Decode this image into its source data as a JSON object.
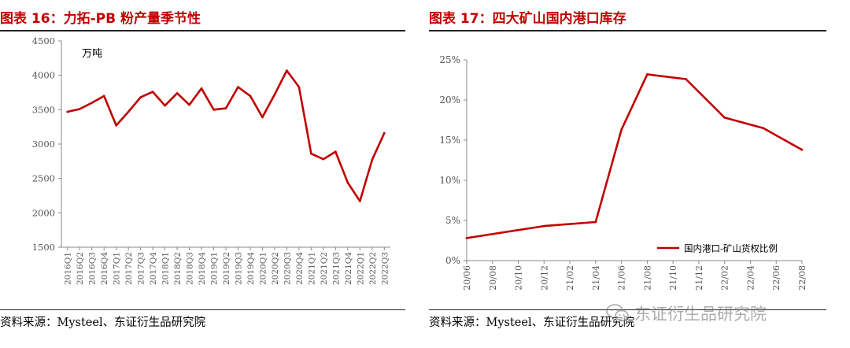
{
  "charts": [
    {
      "title": "图表 16：力拓-PB 粉产量季节性",
      "source": "资料来源：Mysteel、东证衍生品研究院"
    },
    {
      "title": "图表 17：四大矿山国内港口库存",
      "source": "资料来源：Mysteel、东证衍生品研究院"
    }
  ],
  "watermark": {
    "text": "东证衍生品研究院",
    "icon": "wechat-icon"
  },
  "chart_data": [
    {
      "type": "line",
      "title": "图表 16：力拓-PB 粉产量季节性",
      "unit_label": "万吨",
      "color": "#c00000",
      "ylim": [
        1500,
        4500
      ],
      "yticks": [
        1500,
        2000,
        2500,
        3000,
        3500,
        4000,
        4500
      ],
      "ytick_labels": [
        "1500",
        "2000",
        "2500",
        "3000",
        "3500",
        "4000",
        "4500"
      ],
      "categories": [
        "2016Q1",
        "2016Q2",
        "2016Q3",
        "2016Q4",
        "2017Q1",
        "2017Q2",
        "2017Q3",
        "2017Q4",
        "2018Q1",
        "2018Q2",
        "2018Q3",
        "2018Q4",
        "2019Q1",
        "2019Q2",
        "2019Q3",
        "2019Q4",
        "2020Q1",
        "2020Q2",
        "2020Q3",
        "2020Q4",
        "2021Q1",
        "2021Q2",
        "2021Q3",
        "2021Q4",
        "2022Q1",
        "2022Q2",
        "2022Q3"
      ],
      "values": [
        3470,
        3510,
        3600,
        3700,
        3270,
        3470,
        3680,
        3760,
        3560,
        3740,
        3570,
        3810,
        3500,
        3520,
        3830,
        3700,
        3390,
        3720,
        4070,
        3830,
        2860,
        2780,
        2890,
        2440,
        2170,
        2770,
        3160
      ],
      "grid": false,
      "legend": "none"
    },
    {
      "type": "line",
      "title": "图表 17：四大矿山国内港口库存",
      "color": "#c00000",
      "ylim": [
        0,
        25
      ],
      "yticks": [
        0,
        5,
        10,
        15,
        20,
        25
      ],
      "ytick_labels": [
        "0%",
        "5%",
        "10%",
        "15%",
        "20%",
        "25%"
      ],
      "xlim": [
        0,
        26
      ],
      "xtick_labels": [
        "20/06",
        "20/08",
        "20/10",
        "20/12",
        "21/02",
        "21/04",
        "21/06",
        "21/08",
        "21/10",
        "21/12",
        "22/02",
        "22/04",
        "22/06",
        "22/08"
      ],
      "series": [
        {
          "name": "国内港口-矿山货权比例",
          "x": [
            0,
            6,
            10,
            12,
            14,
            17,
            20,
            23,
            26
          ],
          "values": [
            2.8,
            4.3,
            4.8,
            16.3,
            23.2,
            22.6,
            17.8,
            16.5,
            13.8
          ]
        }
      ],
      "grid": false,
      "legend": "bottom-right"
    }
  ]
}
